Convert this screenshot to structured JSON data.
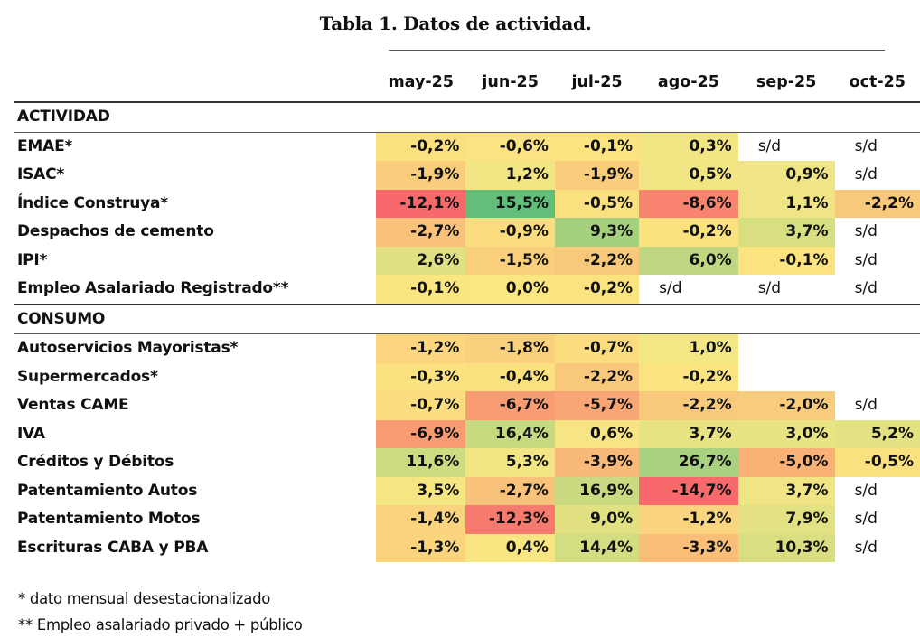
{
  "title": "Tabla 1. Datos de actividad.",
  "columns": [
    "may-25",
    "jun-25",
    "jul-25",
    "ago-25",
    "sep-25",
    "oct-25"
  ],
  "sections": [
    {
      "name": "ACTIVIDAD",
      "rows": [
        {
          "label": "EMAE*",
          "values": [
            "-0,2%",
            "-0,6%",
            "-0,1%",
            "0,3%",
            "s/d",
            "s/d"
          ],
          "colors": [
            "#fbe07f",
            "#fbe283",
            "#fbe47f",
            "#f2e584",
            null,
            null
          ]
        },
        {
          "label": "ISAC*",
          "values": [
            "-1,9%",
            "1,2%",
            "-1,9%",
            "0,5%",
            "0,9%",
            "s/d"
          ],
          "colors": [
            "#f9cd7c",
            "#f2e584",
            "#f9cd7c",
            "#f2e584",
            "#efe586",
            null
          ]
        },
        {
          "label": "Índice Construya*",
          "values": [
            "-12,1%",
            "15,5%",
            "-0,5%",
            "-8,6%",
            "1,1%",
            "-2,2%"
          ],
          "colors": [
            "#f8696b",
            "#63be7b",
            "#fbe07f",
            "#f8846f",
            "#efe585",
            "#f9c97b"
          ]
        },
        {
          "label": "Despachos de cemento",
          "values": [
            "-2,7%",
            "-0,9%",
            "9,3%",
            "-0,2%",
            "3,7%",
            "s/d"
          ],
          "colors": [
            "#f9c27a",
            "#fbdd80",
            "#a5d17f",
            "#fbe27f",
            "#d8df81",
            null
          ]
        },
        {
          "label": "IPI*",
          "values": [
            "2,6%",
            "-1,5%",
            "-2,2%",
            "6,0%",
            "-0,1%",
            "s/d"
          ],
          "colors": [
            "#dfe183",
            "#f9cf7c",
            "#f9c97b",
            "#bfd780",
            "#fbe47f",
            null
          ]
        },
        {
          "label": "Empleo Asalariado Registrado**",
          "values": [
            "-0,1%",
            "0,0%",
            "-0,2%",
            "s/d",
            "s/d",
            "s/d"
          ],
          "colors": [
            "#fbe580",
            "#fbe680",
            "#fbe37f",
            null,
            null,
            null
          ]
        }
      ]
    },
    {
      "name": "CONSUMO",
      "rows": [
        {
          "label": "Autoservicios Mayoristas*",
          "values": [
            "-1,2%",
            "-1,8%",
            "-0,7%",
            "1,0%",
            "",
            ""
          ],
          "colors": [
            "#fbd67e",
            "#fad07d",
            "#fbdd80",
            "#f2e784",
            null,
            null
          ]
        },
        {
          "label": "Supermercados*",
          "values": [
            "-0,3%",
            "-0,4%",
            "-2,2%",
            "-0,2%",
            "",
            ""
          ],
          "colors": [
            "#fbe17f",
            "#fbe07f",
            "#f9c97b",
            "#fbe37f",
            null,
            null
          ]
        },
        {
          "label": "Ventas CAME",
          "values": [
            "-0,7%",
            "-6,7%",
            "-5,7%",
            "-2,2%",
            "-2,0%",
            "s/d"
          ],
          "colors": [
            "#fbdd80",
            "#f89c73",
            "#f8a675",
            "#f9c97b",
            "#f9cb7c",
            null
          ]
        },
        {
          "label": "IVA",
          "values": [
            "-6,9%",
            "16,4%",
            "0,6%",
            "3,7%",
            "3,0%",
            "5,2%"
          ],
          "colors": [
            "#f89b73",
            "#c7da80",
            "#f7e583",
            "#e7e383",
            "#e8e483",
            "#e2e282"
          ]
        },
        {
          "label": "Créditos y Débitos",
          "values": [
            "11,6%",
            "5,3%",
            "-3,9%",
            "26,7%",
            "-5,0%",
            "-0,5%"
          ],
          "colors": [
            "#cedc81",
            "#f2e584",
            "#f9b978",
            "#a8d27f",
            "#f9b176",
            "#fbe07f"
          ]
        },
        {
          "label": "Patentamiento Autos",
          "values": [
            "3,5%",
            "-2,7%",
            "16,9%",
            "-14,7%",
            "3,7%",
            "s/d"
          ],
          "colors": [
            "#f4e683",
            "#f9c27a",
            "#c9da80",
            "#f8696b",
            "#efe584",
            null
          ]
        },
        {
          "label": "Patentamiento Motos",
          "values": [
            "-1,4%",
            "-12,3%",
            "9,0%",
            "-1,2%",
            "7,9%",
            "s/d"
          ],
          "colors": [
            "#f9d37d",
            "#f67a6e",
            "#e1e182",
            "#fad47e",
            "#e2e282",
            null
          ]
        },
        {
          "label": "Escrituras CABA y PBA",
          "values": [
            "-1,3%",
            "0,4%",
            "14,4%",
            "-3,3%",
            "10,3%",
            "s/d"
          ],
          "colors": [
            "#fad57d",
            "#f8e683",
            "#d3dd81",
            "#f9bf79",
            "#d9df81",
            null
          ]
        }
      ]
    }
  ],
  "notes": [
    "* dato mensual desestacionalizado",
    "** Empleo asalariado privado + público"
  ]
}
